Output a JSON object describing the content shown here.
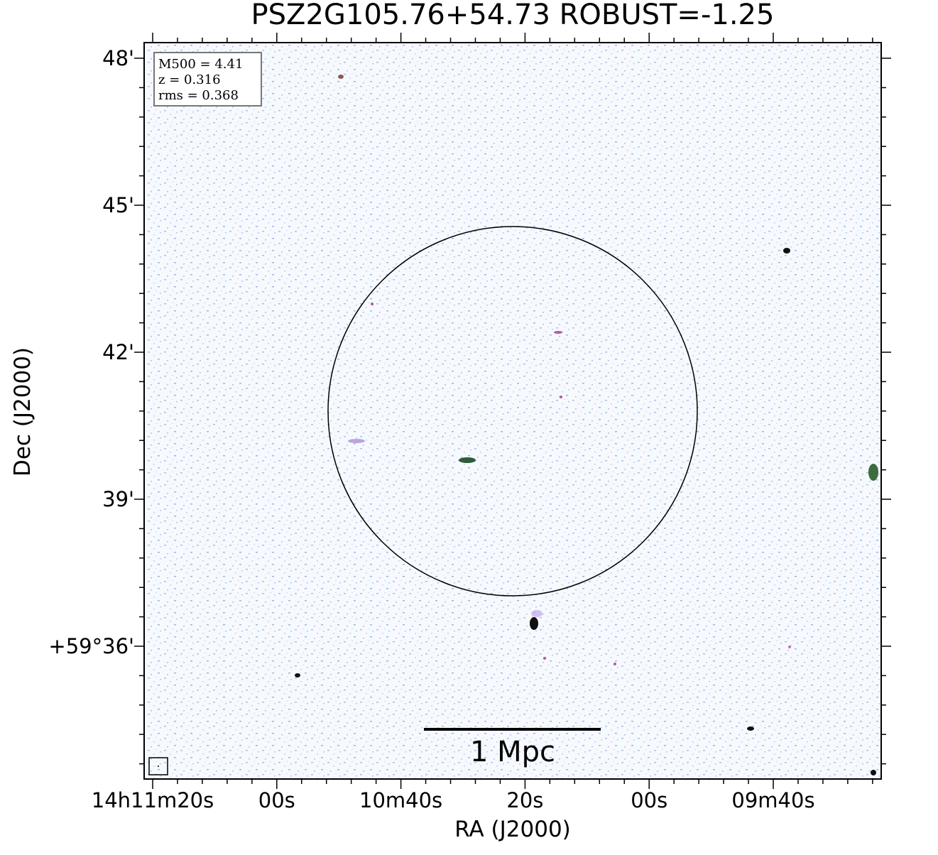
{
  "title": "PSZ2G105.76+54.73 ROBUST=-1.25",
  "x_axis": {
    "label": "RA (J2000)",
    "tick_labels": [
      "14h11m20s",
      "00s",
      "10m40s",
      "20s",
      "00s",
      "09m40s"
    ]
  },
  "y_axis": {
    "label": "Dec (J2000)",
    "tick_labels": [
      "48'",
      "45'",
      "42'",
      "39'",
      "+59°36'"
    ]
  },
  "info_box": [
    "M500 = 4.41",
    "z = 0.316",
    "rms = 0.368"
  ],
  "scale_bar": "1 Mpc"
}
